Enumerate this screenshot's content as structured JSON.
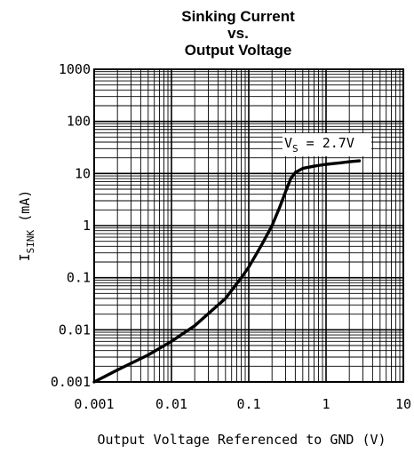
{
  "chart_data": {
    "type": "line",
    "title_lines": [
      "Sinking Current",
      "vs.",
      "Output Voltage"
    ],
    "xlabel": "Output Voltage Referenced to GND (V)",
    "ylabel": {
      "main": "I",
      "sub": "SINK",
      "unit": " (mA)"
    },
    "x_scale": "log",
    "y_scale": "log",
    "xlim": [
      0.001,
      10
    ],
    "ylim": [
      0.001,
      1000
    ],
    "x_ticks": [
      "0.001",
      "0.01",
      "0.1",
      "1",
      "10"
    ],
    "y_ticks": [
      "1000",
      "100",
      "10",
      "1",
      "0.1",
      "0.01",
      "0.001"
    ],
    "grid": true,
    "annotation": {
      "main": "V",
      "sub": "S",
      "rest": " = 2.7V"
    },
    "series": [
      {
        "x": [
          0.001,
          0.002,
          0.005,
          0.01,
          0.02,
          0.05,
          0.08,
          0.1,
          0.15,
          0.2,
          0.25,
          0.3,
          0.35,
          0.4,
          0.5,
          0.7,
          1.0,
          1.5,
          2.0,
          2.7
        ],
        "y": [
          0.001,
          0.0017,
          0.0033,
          0.006,
          0.012,
          0.04,
          0.1,
          0.16,
          0.45,
          1.0,
          2.2,
          4.5,
          8.0,
          10.5,
          12.5,
          13.8,
          15.0,
          16.0,
          16.8,
          17.5
        ]
      }
    ]
  }
}
